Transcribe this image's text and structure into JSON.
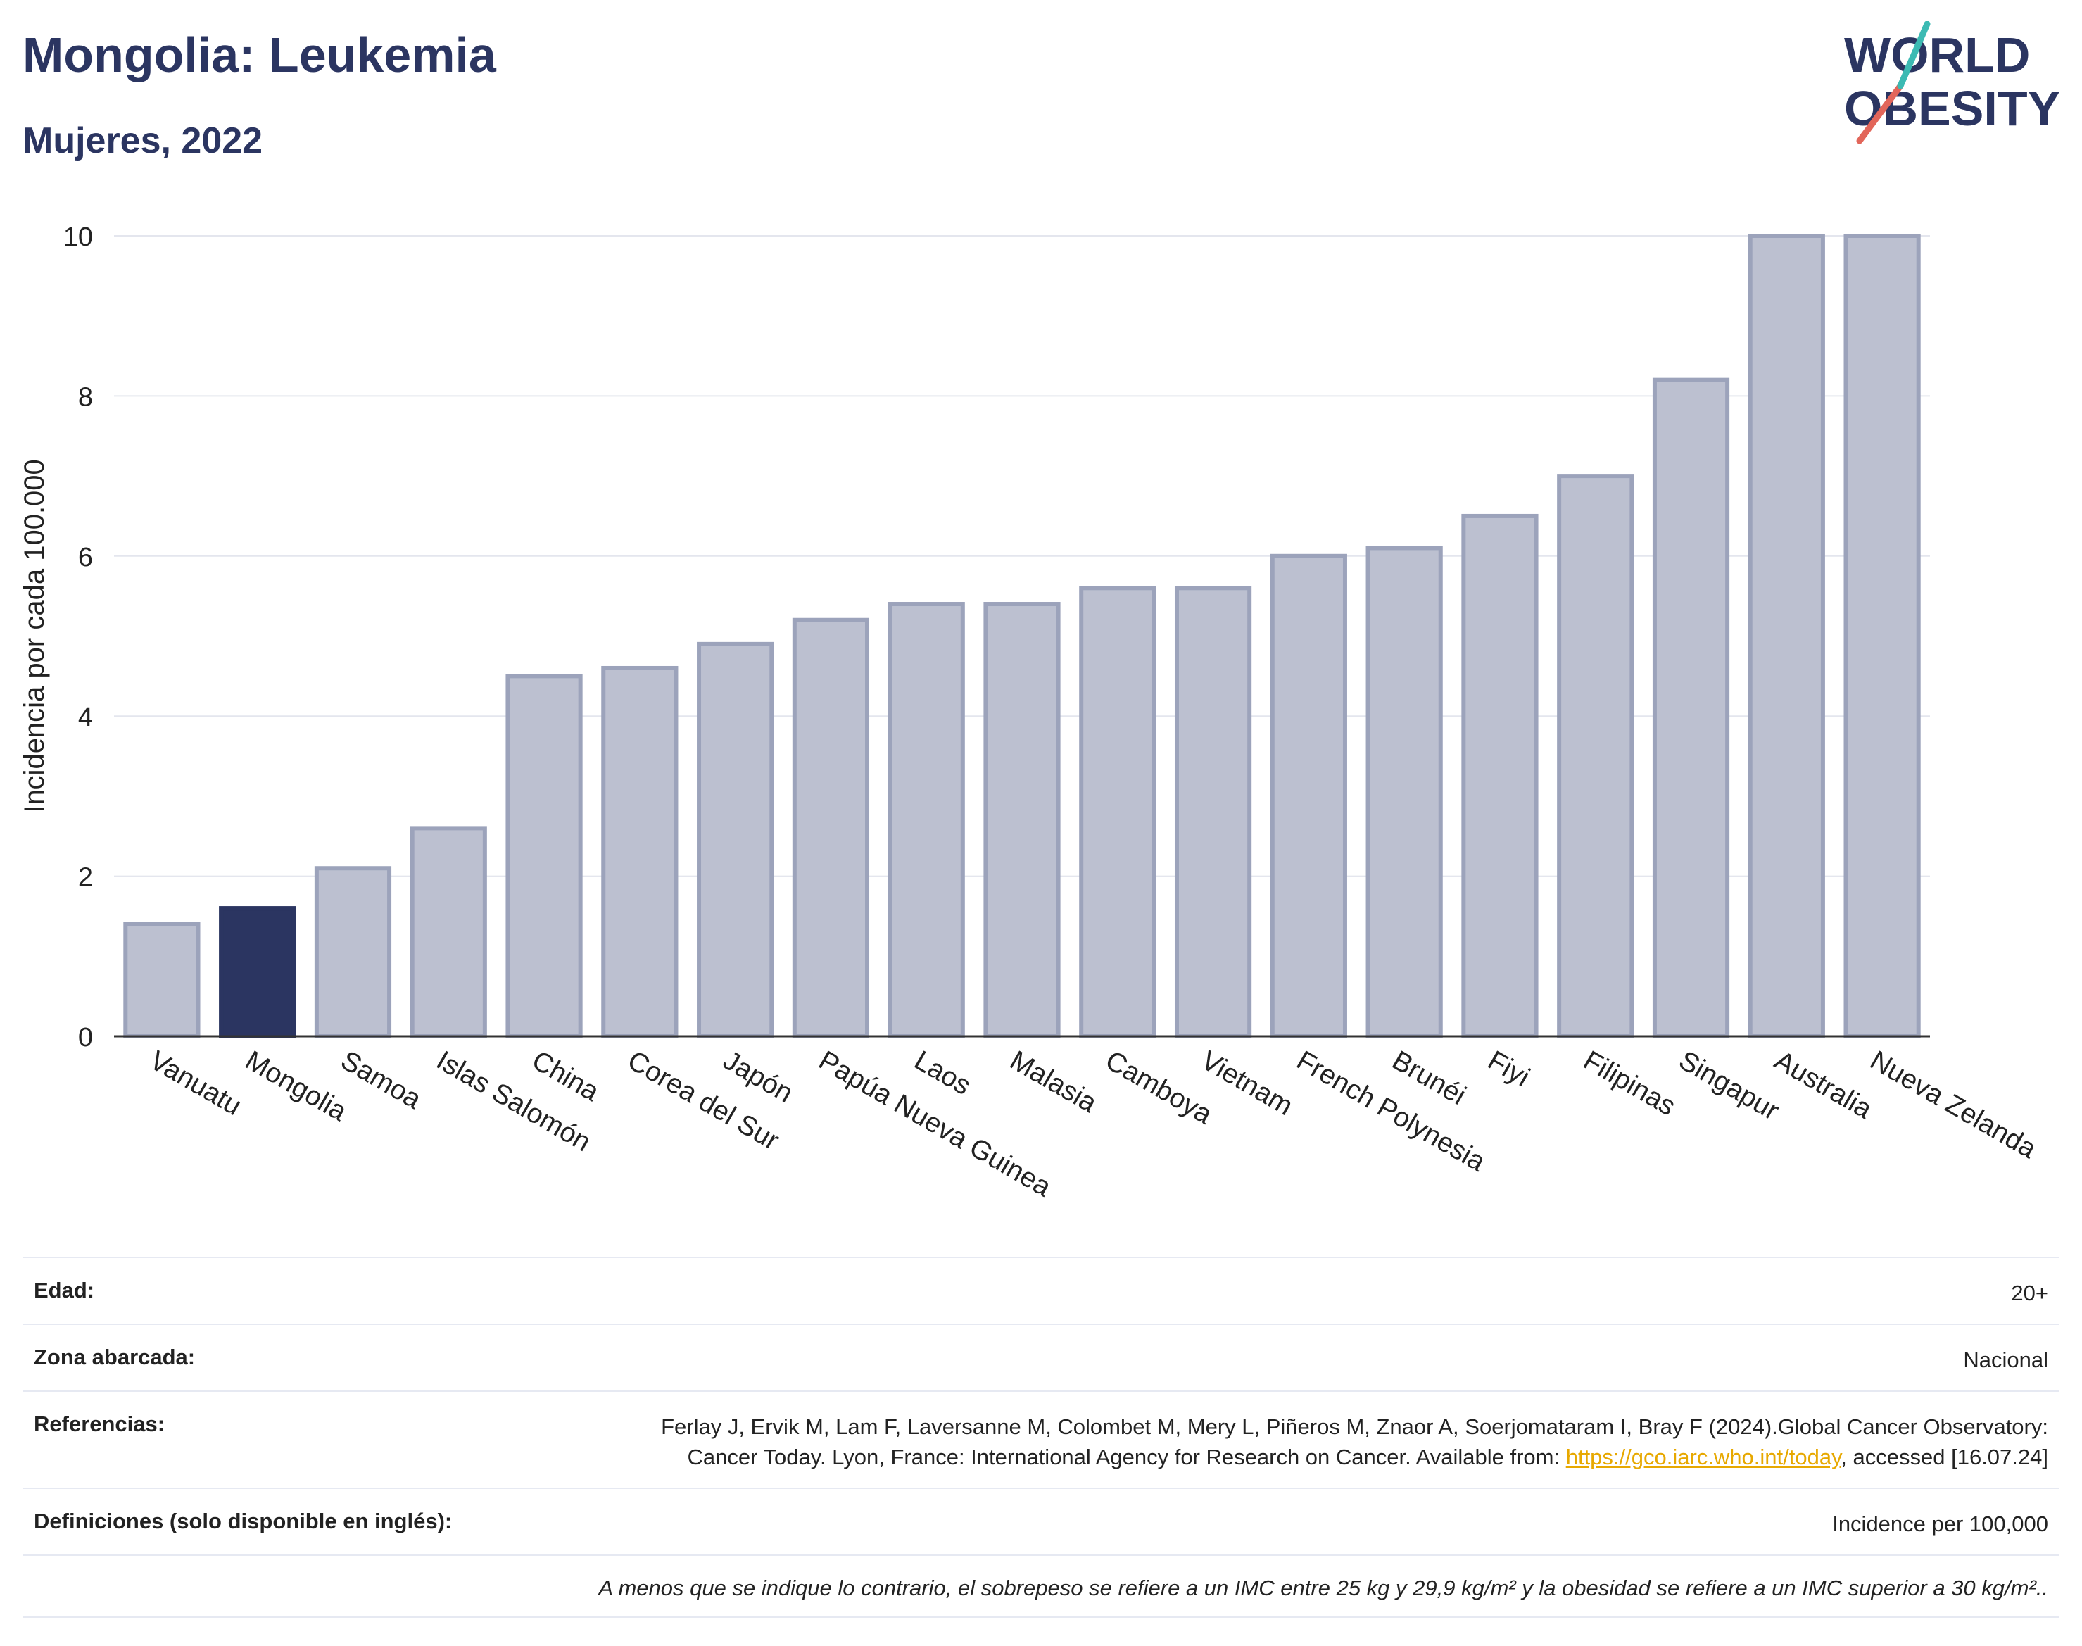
{
  "header": {
    "title": "Mongolia: Leukemia",
    "subtitle": "Mujeres, 2022"
  },
  "logo": {
    "line1": "WORLD",
    "line2": "OBESITY",
    "colors": [
      "#2b3561",
      "#e2665a",
      "#3cbab3"
    ]
  },
  "chart_data": {
    "type": "bar",
    "title": "Mongolia: Leukemia",
    "subtitle": "Mujeres, 2022",
    "xlabel": "",
    "ylabel": "Incidencia por cada 100.000",
    "ylim": [
      0,
      10
    ],
    "yticks": [
      "0",
      "2",
      "4",
      "6",
      "8",
      "10"
    ],
    "grid": true,
    "highlight": "Mongolia",
    "colors": {
      "bar": "#bcc0d0",
      "bar_edge": "#9ca3bb",
      "highlight": "#2b3561"
    },
    "categories": [
      "Vanuatu",
      "Mongolia",
      "Samoa",
      "Islas Salomón",
      "China",
      "Corea del Sur",
      "Japón",
      "Papúa Nueva Guinea",
      "Laos",
      "Malasia",
      "Camboya",
      "Vietnam",
      "French Polynesia",
      "Brunéi",
      "Fiyi",
      "Filipinas",
      "Singapur",
      "Australia",
      "Nueva Zelanda"
    ],
    "values": [
      1.4,
      1.6,
      2.1,
      2.6,
      4.5,
      4.6,
      4.9,
      5.2,
      5.4,
      5.4,
      5.6,
      5.6,
      6.0,
      6.1,
      6.5,
      7.0,
      8.2,
      10.0,
      10.0
    ]
  },
  "info": {
    "age_label": "Edad:",
    "age_value": "20+",
    "zone_label": "Zona abarcada:",
    "zone_value": "Nacional",
    "ref_label": "Referencias:",
    "ref_text": "Ferlay J, Ervik M, Lam F, Laversanne M, Colombet M, Mery L, Piñeros M, Znaor A, Soerjomataram I, Bray F (2024).Global Cancer Observatory: Cancer Today. Lyon, France: International Agency for Research on Cancer. Available from: ",
    "ref_link": "https://gco.iarc.who.int/today",
    "ref_after": ", accessed [16.07.24]",
    "def_label": "Definiciones (solo disponible en inglés):",
    "def_value": "Incidence per 100,000",
    "note": "A menos que se indique lo contrario, el sobrepeso se refiere a un IMC entre 25 kg y 29,9 kg/m² y la obesidad se refiere a un IMC superior a 30 kg/m².."
  }
}
